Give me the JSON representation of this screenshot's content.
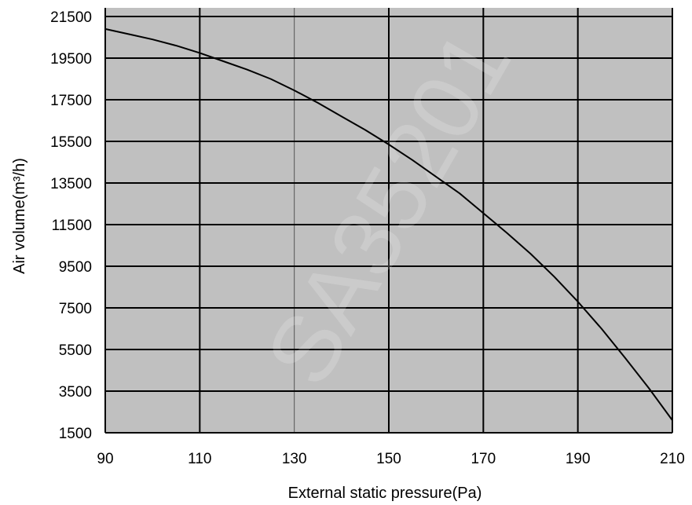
{
  "chart_data": {
    "type": "line",
    "title": "",
    "xlabel": "External static pressure(Pa)",
    "ylabel": "Air volume(m³/h)",
    "xlim": [
      90,
      210
    ],
    "ylim": [
      1500,
      21500
    ],
    "x_ticks": [
      "90",
      "110",
      "130",
      "150",
      "170",
      "190",
      "210"
    ],
    "y_ticks": [
      "21500",
      "19500",
      "17500",
      "15500",
      "13500",
      "11500",
      "9500",
      "7500",
      "5500",
      "3500",
      "1500"
    ],
    "grid": true,
    "legend": "none",
    "watermark": "SA35201",
    "colors": {
      "plot_background": "#c0c0c0",
      "grid": "#000000",
      "line": "#000000",
      "watermark": "#ffffff"
    },
    "series": [
      {
        "x": [
          90,
          95,
          100,
          105,
          110,
          115,
          120,
          125,
          130,
          135,
          140,
          145,
          150,
          155,
          160,
          165,
          170,
          175,
          180,
          185,
          190,
          195,
          200,
          205,
          210
        ],
        "y": [
          20900,
          20650,
          20400,
          20100,
          19750,
          19350,
          18950,
          18500,
          17950,
          17350,
          16700,
          16050,
          15350,
          14600,
          13800,
          13000,
          12050,
          11100,
          10100,
          9000,
          7800,
          6500,
          5100,
          3650,
          2100
        ]
      }
    ]
  }
}
